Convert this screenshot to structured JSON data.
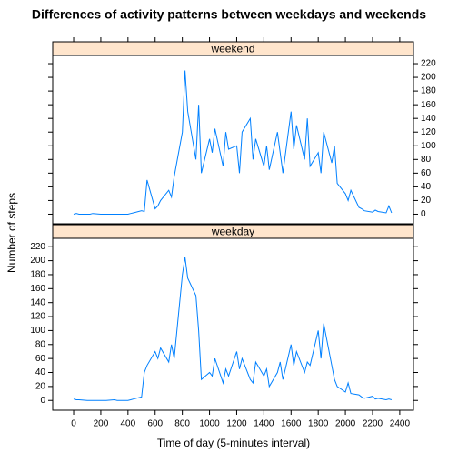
{
  "chart_data": {
    "type": "line",
    "title": "Differences of activity patterns between weekdays and weekends",
    "x_label": "Time of day (5-minutes interval)",
    "y_label": "Number of steps",
    "color": "#0080ff",
    "xlim": [
      -154,
      2501
    ],
    "ylim": [
      -14,
      232
    ],
    "xticks": [
      0,
      200,
      400,
      600,
      800,
      1000,
      1200,
      1400,
      1600,
      1800,
      2000,
      2200,
      2400
    ],
    "yticks": [
      0,
      20,
      40,
      60,
      80,
      100,
      120,
      140,
      160,
      180,
      200,
      220
    ],
    "x": [
      0,
      20,
      40,
      100,
      120,
      140,
      200,
      220,
      240,
      300,
      320,
      340,
      400,
      420,
      440,
      500,
      520,
      540,
      600,
      620,
      640,
      700,
      720,
      740,
      800,
      820,
      840,
      900,
      920,
      940,
      1000,
      1020,
      1040,
      1100,
      1120,
      1140,
      1200,
      1220,
      1240,
      1300,
      1320,
      1340,
      1400,
      1420,
      1440,
      1500,
      1520,
      1540,
      1600,
      1620,
      1640,
      1700,
      1720,
      1740,
      1800,
      1820,
      1840,
      1900,
      1920,
      1940,
      2000,
      2020,
      2040,
      2100,
      2120,
      2140,
      2200,
      2220,
      2240,
      2300,
      2320,
      2340
    ],
    "series": [
      {
        "name": "weekend",
        "values": [
          0,
          1,
          0,
          0,
          0,
          1,
          0,
          0,
          0,
          0,
          0,
          0,
          0,
          1,
          2,
          5,
          4,
          50,
          8,
          12,
          20,
          35,
          25,
          55,
          120,
          210,
          150,
          80,
          160,
          60,
          110,
          90,
          125,
          70,
          120,
          95,
          100,
          60,
          120,
          140,
          80,
          110,
          70,
          100,
          65,
          120,
          90,
          60,
          150,
          95,
          130,
          80,
          140,
          70,
          90,
          60,
          120,
          75,
          100,
          45,
          30,
          20,
          35,
          10,
          8,
          5,
          3,
          6,
          4,
          2,
          12,
          2
        ]
      },
      {
        "name": "weekday",
        "values": [
          2,
          1,
          1,
          0,
          0,
          0,
          0,
          0,
          0,
          1,
          0,
          0,
          0,
          1,
          2,
          5,
          40,
          50,
          70,
          60,
          75,
          55,
          80,
          60,
          180,
          205,
          175,
          150,
          100,
          30,
          40,
          35,
          60,
          25,
          45,
          35,
          70,
          45,
          60,
          30,
          25,
          55,
          35,
          45,
          20,
          40,
          55,
          30,
          80,
          50,
          70,
          40,
          55,
          50,
          100,
          60,
          110,
          50,
          30,
          20,
          12,
          25,
          10,
          8,
          5,
          3,
          6,
          2,
          3,
          1,
          2,
          1
        ]
      }
    ]
  }
}
